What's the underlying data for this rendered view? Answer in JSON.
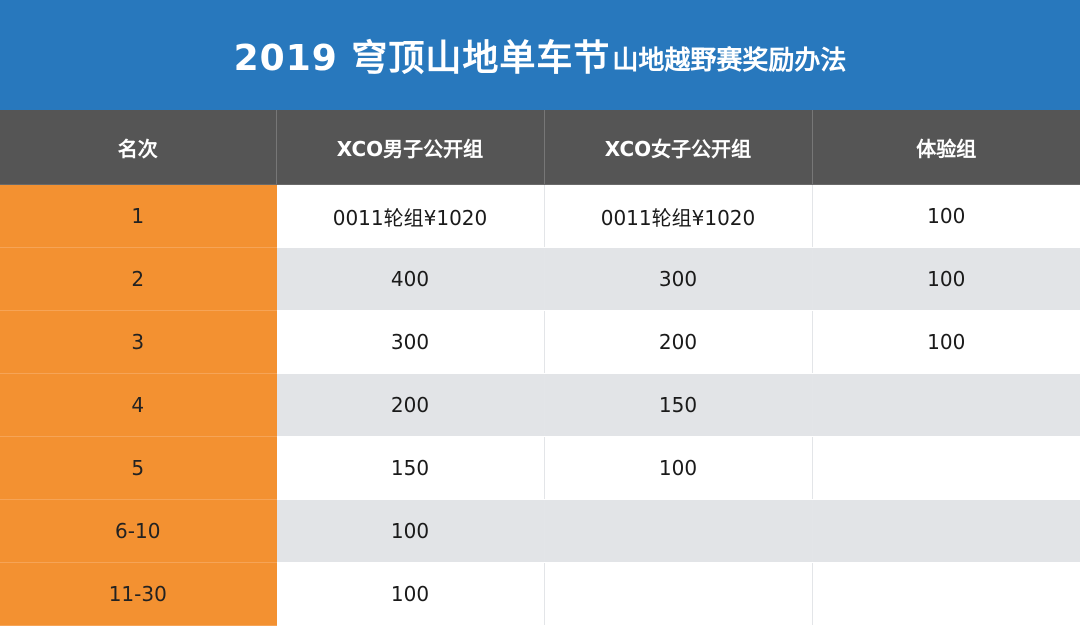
{
  "banner": {
    "title_main": "2019 穹顶山地单车节",
    "title_sub": "山地越野赛奖励办法"
  },
  "colors": {
    "banner_bg": "#2878bd",
    "header_bg": "#555555",
    "rank_col_bg": "#f39131",
    "stripe_bg": "#e2e4e7"
  },
  "table": {
    "headers": [
      "名次",
      "XCO男子公开组",
      "XCO女子公开组",
      "体验组"
    ],
    "rows": [
      [
        "1",
        "0011轮组¥1020",
        "0011轮组¥1020",
        "100"
      ],
      [
        "2",
        "400",
        "300",
        "100"
      ],
      [
        "3",
        "300",
        "200",
        "100"
      ],
      [
        "4",
        "200",
        "150",
        ""
      ],
      [
        "5",
        "150",
        "100",
        ""
      ],
      [
        "6-10",
        "100",
        "",
        ""
      ],
      [
        "11-30",
        "100",
        "",
        ""
      ]
    ]
  }
}
